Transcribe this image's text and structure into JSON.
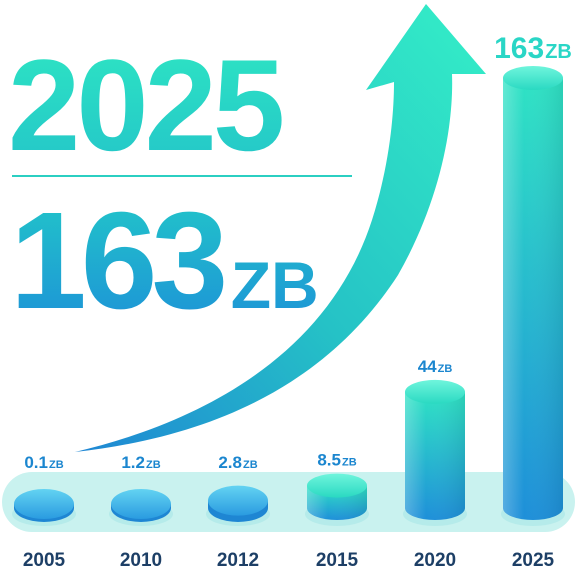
{
  "headline": {
    "year": "2025",
    "value": "163",
    "unit": "ZB"
  },
  "chart_data": {
    "type": "bar",
    "categories": [
      "2005",
      "2010",
      "2012",
      "2015",
      "2020",
      "2025"
    ],
    "values": [
      0.1,
      1.2,
      2.8,
      8.5,
      44,
      163
    ],
    "value_labels": [
      "0.1",
      "1.2",
      "2.8",
      "8.5",
      "44",
      "163"
    ],
    "unit": "ZB",
    "title": "",
    "xlabel": "",
    "ylabel": "",
    "grid": false,
    "legend": "none",
    "style": "3d-cylinders",
    "trend_arrow": true
  },
  "colors": {
    "teal": "#2fe0c1",
    "blue": "#1e90d8",
    "deep_blue": "#1a72c6",
    "tray": "#c9f2ef",
    "tick_text": "#1d3f66",
    "label_text": "#1b86cf"
  }
}
